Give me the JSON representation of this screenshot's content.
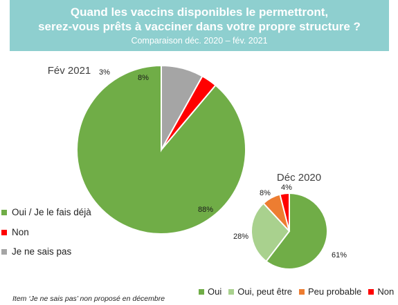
{
  "header": {
    "title_line1": "Quand les vaccins disponibles le permettront,",
    "title_line2": "serez-vous prêts à vacciner dans votre propre structure ?",
    "subtitle": "Comparaison déc. 2020 – fév. 2021"
  },
  "chart_data": [
    {
      "type": "pie",
      "title": "Fév 2021",
      "slices": [
        {
          "label": "Oui / Je le fais déjà",
          "value": 88,
          "text": "88%",
          "color": "#70ad47"
        },
        {
          "label": "Non",
          "value": 3,
          "text": "3%",
          "color": "#ff0000"
        },
        {
          "label": "Je ne sais pas",
          "value": 8,
          "text": "8%",
          "color": "#a5a5a5"
        }
      ],
      "legend_position": "left"
    },
    {
      "type": "pie",
      "title": "Déc 2020",
      "slices": [
        {
          "label": "Oui",
          "value": 61,
          "text": "61%",
          "color": "#70ad47"
        },
        {
          "label": "Oui, peut être",
          "value": 28,
          "text": "28%",
          "color": "#a9d18e"
        },
        {
          "label": "Peu probable",
          "value": 8,
          "text": "8%",
          "color": "#ed7d31"
        },
        {
          "label": "Non",
          "value": 4,
          "text": "4%",
          "color": "#ff0000"
        }
      ],
      "legend_position": "bottom"
    }
  ],
  "legend_left": [
    {
      "label": "Oui / Je le fais déjà",
      "color": "#70ad47"
    },
    {
      "label": "Non",
      "color": "#ff0000"
    },
    {
      "label": "Je ne sais pas",
      "color": "#a5a5a5"
    }
  ],
  "legend_bottom": [
    {
      "label": "Oui",
      "color": "#70ad47"
    },
    {
      "label": "Oui, peut être",
      "color": "#a9d18e"
    },
    {
      "label": "Peu probable",
      "color": "#ed7d31"
    },
    {
      "label": "Non",
      "color": "#ff0000"
    }
  ],
  "footnote": "Item ‘Je ne sais pas’ non proposé en décembre"
}
